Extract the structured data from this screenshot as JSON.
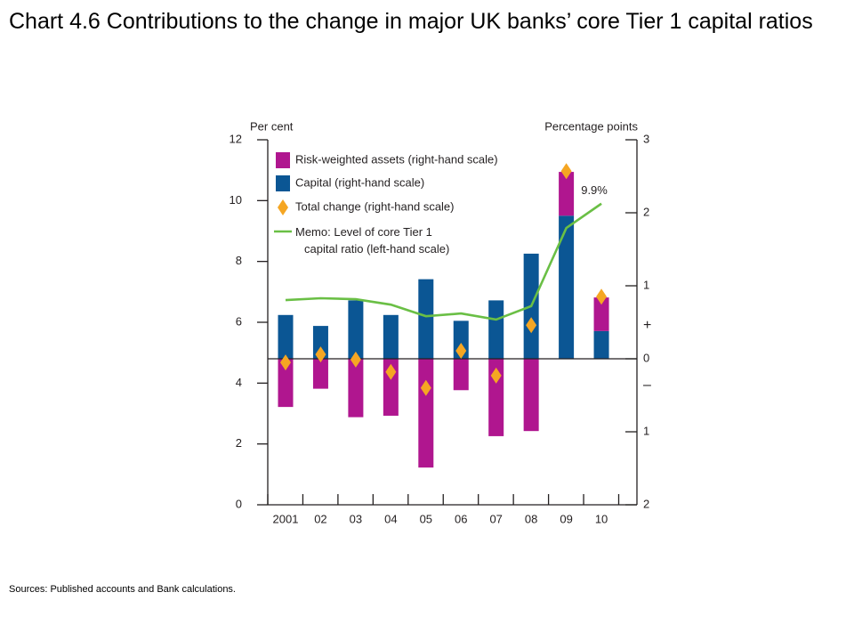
{
  "chart_data": {
    "type": "bar",
    "title": "Chart 4.6  Contributions to the change in major UK banks’ core Tier 1 capital ratios",
    "source": "Sources:  Published accounts and Bank calculations.",
    "ylabel": "Per cent",
    "y2label": "Percentage points",
    "sign_labels": [
      "+",
      "–"
    ],
    "categories": [
      "2001",
      "02",
      "03",
      "04",
      "05",
      "06",
      "07",
      "08",
      "09",
      "10"
    ],
    "ylim": [
      0,
      12
    ],
    "yticks": [
      0,
      2,
      4,
      6,
      8,
      10,
      12
    ],
    "y2lim": [
      -2,
      3
    ],
    "y2ticks": [
      {
        "value": -2,
        "label": "2"
      },
      {
        "value": -1,
        "label": "1"
      },
      0,
      1,
      2,
      3
    ],
    "series": [
      {
        "name": "Risk-weighted assets (right-hand scale)",
        "type": "bar",
        "axis": "y2",
        "color": "#b0168f",
        "values": [
          -0.66,
          -0.41,
          -0.8,
          -0.78,
          -1.49,
          -0.43,
          -1.06,
          -0.99,
          0.6,
          0.46
        ]
      },
      {
        "name": "Capital (right-hand scale)",
        "type": "bar",
        "axis": "y2",
        "color": "#0b5694",
        "values": [
          0.6,
          0.45,
          0.8,
          0.6,
          1.09,
          0.52,
          0.8,
          1.44,
          1.96,
          0.38
        ]
      },
      {
        "name": "Total change (right-hand scale)",
        "type": "diamond",
        "axis": "y2",
        "color": "#f5a623",
        "values": [
          -0.05,
          0.06,
          -0.01,
          -0.18,
          -0.4,
          0.11,
          -0.23,
          0.46,
          2.57,
          0.85
        ]
      },
      {
        "name": "Memo: Level of core Tier 1 capital ratio (left-hand scale)",
        "type": "line",
        "color": "#6abf45",
        "values": [
          6.73,
          6.79,
          6.76,
          6.58,
          6.2,
          6.29,
          6.09,
          6.53,
          9.1,
          9.9
        ],
        "value_labels": [
          null,
          null,
          null,
          null,
          null,
          null,
          null,
          null,
          null,
          "9.9%"
        ]
      }
    ]
  }
}
